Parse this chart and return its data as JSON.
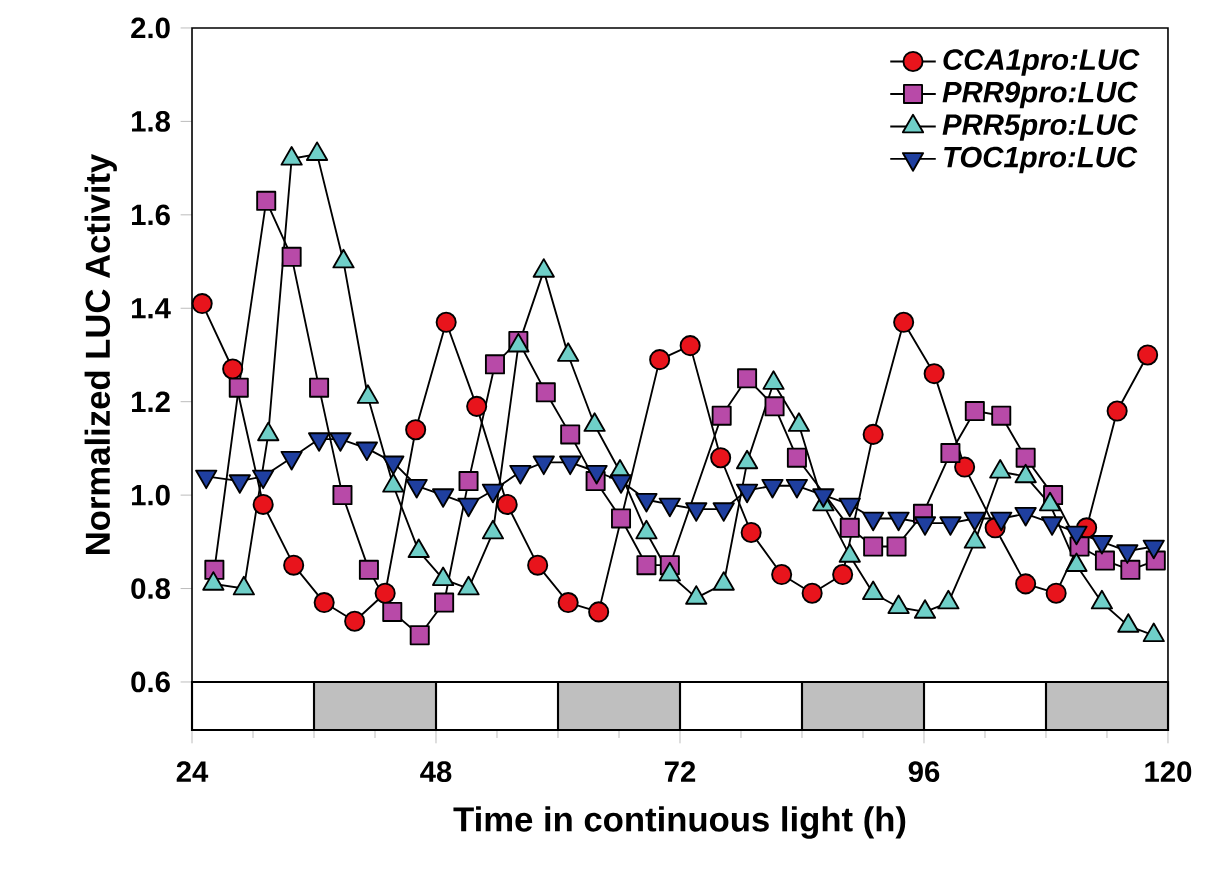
{
  "chart_data": {
    "type": "line",
    "xlabel": "Time in continuous light (h)",
    "ylabel": "Normalized LUC Activity",
    "xlim": [
      24,
      120
    ],
    "xticks": [
      24,
      48,
      72,
      96,
      120
    ],
    "ylim": [
      0.6,
      2.0
    ],
    "yticks": [
      0.6,
      0.8,
      {
        "value": 1.0,
        "label": "1.0"
      },
      1.2,
      1.4,
      1.6,
      1.8,
      {
        "value": 2.0,
        "label": "2.0"
      }
    ],
    "legend": "top right",
    "grid": false,
    "line_style": "solid",
    "series": [
      {
        "name": "CCA1pro:LUC",
        "color": "#e8141c",
        "marker": "circle",
        "x": [
          25,
          28,
          31,
          34,
          37,
          40,
          43,
          46,
          49,
          52,
          55,
          58,
          61,
          64,
          70,
          73,
          76,
          79,
          82,
          85,
          88,
          91,
          94,
          97,
          100,
          103,
          106,
          109,
          112,
          115,
          118
        ],
        "values": [
          1.41,
          1.27,
          0.98,
          0.85,
          0.77,
          0.73,
          0.79,
          1.14,
          1.37,
          1.19,
          0.98,
          0.85,
          0.77,
          0.75,
          1.29,
          1.32,
          1.08,
          0.92,
          0.83,
          0.79,
          0.83,
          1.13,
          1.37,
          1.26,
          1.06,
          0.93,
          0.81,
          0.79,
          0.93,
          1.18,
          1.3
        ]
      },
      {
        "name": "PRR9pro:LUC",
        "color": "#b84aa8",
        "marker": "square",
        "x": [
          26.2,
          28.6,
          31.3,
          33.8,
          36.5,
          38.8,
          41.4,
          43.7,
          46.4,
          48.8,
          51.2,
          53.8,
          56.1,
          58.8,
          61.2,
          63.7,
          66.2,
          68.7,
          71.0,
          76.1,
          78.6,
          81.3,
          83.5,
          88.7,
          91.0,
          93.3,
          95.9,
          98.6,
          101.0,
          103.6,
          106.0,
          108.7,
          111.3,
          113.8,
          116.3,
          118.8
        ],
        "values": [
          0.84,
          1.23,
          1.63,
          1.51,
          1.23,
          1.0,
          0.84,
          0.75,
          0.7,
          0.77,
          1.03,
          1.28,
          1.33,
          1.22,
          1.13,
          1.03,
          0.95,
          0.85,
          0.85,
          1.17,
          1.25,
          1.19,
          1.08,
          0.93,
          0.89,
          0.89,
          0.96,
          1.09,
          1.18,
          1.17,
          1.08,
          1.0,
          0.89,
          0.86,
          0.84,
          0.86
        ]
      },
      {
        "name": "PRR5pro:LUC",
        "color": "#6fcfc8",
        "marker": "triangle",
        "x": [
          26.1,
          29.1,
          31.5,
          33.8,
          36.3,
          38.9,
          41.3,
          43.8,
          46.3,
          48.7,
          51.2,
          53.6,
          56.1,
          58.6,
          61.0,
          63.6,
          66.1,
          68.7,
          71.0,
          73.6,
          76.3,
          78.6,
          81.2,
          83.7,
          86.1,
          88.7,
          91.0,
          93.5,
          96.1,
          98.4,
          101.0,
          103.5,
          106.0,
          108.4,
          111.0,
          113.5,
          116.1,
          118.6
        ],
        "values": [
          0.81,
          0.8,
          1.13,
          1.72,
          1.73,
          1.5,
          1.21,
          1.02,
          0.88,
          0.82,
          0.8,
          0.92,
          1.32,
          1.48,
          1.3,
          1.15,
          1.05,
          0.92,
          0.83,
          0.78,
          0.81,
          1.07,
          1.24,
          1.15,
          0.98,
          0.87,
          0.79,
          0.76,
          0.75,
          0.77,
          0.9,
          1.05,
          1.04,
          0.98,
          0.85,
          0.77,
          0.72,
          0.7
        ]
      },
      {
        "name": "TOC1pro:LUC",
        "color": "#1f3f9f",
        "marker": "triangle-down",
        "x": [
          25.4,
          28.7,
          31.0,
          33.8,
          36.5,
          38.6,
          41.2,
          43.8,
          46.1,
          48.7,
          51.2,
          53.6,
          56.3,
          58.6,
          61.2,
          63.8,
          66.2,
          68.7,
          71.0,
          73.6,
          76.3,
          78.6,
          81.1,
          83.5,
          86.1,
          88.7,
          91.0,
          93.5,
          96.1,
          98.6,
          101.0,
          103.6,
          106.0,
          108.6,
          111.0,
          113.5,
          116.0,
          118.6
        ],
        "values": [
          1.04,
          1.03,
          1.04,
          1.08,
          1.12,
          1.12,
          1.1,
          1.07,
          1.02,
          1.0,
          0.98,
          1.01,
          1.05,
          1.07,
          1.07,
          1.05,
          1.03,
          0.99,
          0.98,
          0.97,
          0.97,
          1.01,
          1.02,
          1.02,
          1.0,
          0.98,
          0.95,
          0.95,
          0.94,
          0.94,
          0.95,
          0.95,
          0.96,
          0.94,
          0.92,
          0.9,
          0.88,
          0.89
        ]
      }
    ]
  }
}
